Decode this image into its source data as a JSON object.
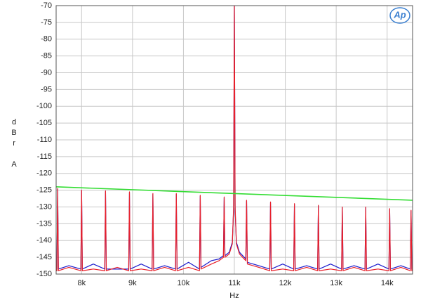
{
  "chart_data": {
    "type": "line",
    "xlabel": "Hz",
    "ylabel": "dBr A",
    "logo": "Ap",
    "xlim": [
      7500,
      14500
    ],
    "ylim": [
      -150,
      -70
    ],
    "xticks": [
      {
        "value": 8000,
        "label": "8k"
      },
      {
        "value": 9000,
        "label": "9k"
      },
      {
        "value": 10000,
        "label": "10k"
      },
      {
        "value": 11000,
        "label": "11k"
      },
      {
        "value": 12000,
        "label": "12k"
      },
      {
        "value": 13000,
        "label": "13k"
      },
      {
        "value": 14000,
        "label": "14k"
      }
    ],
    "yticks": [
      -70,
      -75,
      -80,
      -85,
      -90,
      -95,
      -100,
      -105,
      -110,
      -115,
      -120,
      -125,
      -130,
      -135,
      -140,
      -145,
      -150
    ],
    "grid": true,
    "x": [
      7500,
      7515,
      7530,
      7545,
      7750,
      7985,
      8000,
      8015,
      8230,
      8455,
      8470,
      8485,
      8700,
      8925,
      8940,
      8955,
      9170,
      9385,
      9400,
      9415,
      9630,
      9845,
      9860,
      9875,
      10100,
      10315,
      10330,
      10345,
      10550,
      10700,
      10785,
      10800,
      10815,
      10900,
      10960,
      10985,
      11000,
      11015,
      11040,
      11100,
      11225,
      11240,
      11255,
      11480,
      11695,
      11710,
      11725,
      11950,
      12165,
      12180,
      12195,
      12420,
      12635,
      12650,
      12665,
      12890,
      13105,
      13120,
      13135,
      13350,
      13565,
      13580,
      13595,
      13820,
      14035,
      14050,
      14065,
      14270,
      14455,
      14470,
      14485,
      14500
    ],
    "series": [
      {
        "color": "#1a1acc",
        "values": [
          -148.5,
          -148.5,
          -124.7,
          -148.5,
          -147.5,
          -148.5,
          -125.2,
          -148.5,
          -147,
          -148.5,
          -125.4,
          -148.5,
          -148.5,
          -148.5,
          -125.7,
          -148.5,
          -147,
          -148.5,
          -126.2,
          -148.5,
          -147.5,
          -148.5,
          -126.2,
          -148.5,
          -146.5,
          -148.5,
          -126.7,
          -148,
          -146,
          -145.5,
          -144.5,
          -127.2,
          -144.5,
          -143.5,
          -140.5,
          -131,
          -70,
          -131,
          -140.5,
          -143.5,
          -145.5,
          -128.2,
          -146.5,
          -147.5,
          -148.5,
          -128.7,
          -148.5,
          -147,
          -148.5,
          -129.2,
          -148.5,
          -147.5,
          -148.5,
          -129.7,
          -148.5,
          -147,
          -148.5,
          -130.2,
          -148.5,
          -147.5,
          -148.5,
          -130.2,
          -148.5,
          -147,
          -148.5,
          -130.7,
          -148.5,
          -147.5,
          -148.5,
          -131.2,
          -148.5,
          -148.5
        ]
      },
      {
        "color": "#e8202a",
        "values": [
          -149,
          -149,
          -124.5,
          -149,
          -148,
          -149,
          -125,
          -149,
          -148.5,
          -149,
          -125.2,
          -149,
          -148,
          -149,
          -125.5,
          -149,
          -148.5,
          -149,
          -126,
          -149,
          -148,
          -149,
          -126,
          -149,
          -148,
          -149,
          -126.5,
          -148.5,
          -147,
          -146,
          -145,
          -127,
          -145,
          -144,
          -141,
          -130,
          -70,
          -130,
          -141,
          -144,
          -146,
          -128,
          -147,
          -148,
          -149,
          -128.5,
          -149,
          -148.5,
          -149,
          -129,
          -149,
          -148,
          -149,
          -129.5,
          -149,
          -148.5,
          -149,
          -130,
          -149,
          -148,
          -149,
          -130,
          -149,
          -148.5,
          -149,
          -130.5,
          -149,
          -148,
          -149,
          -131,
          -149,
          -149
        ]
      },
      {
        "color": "#33dd33",
        "x": [
          7500,
          14500
        ],
        "values": [
          -124,
          -128
        ]
      }
    ]
  }
}
